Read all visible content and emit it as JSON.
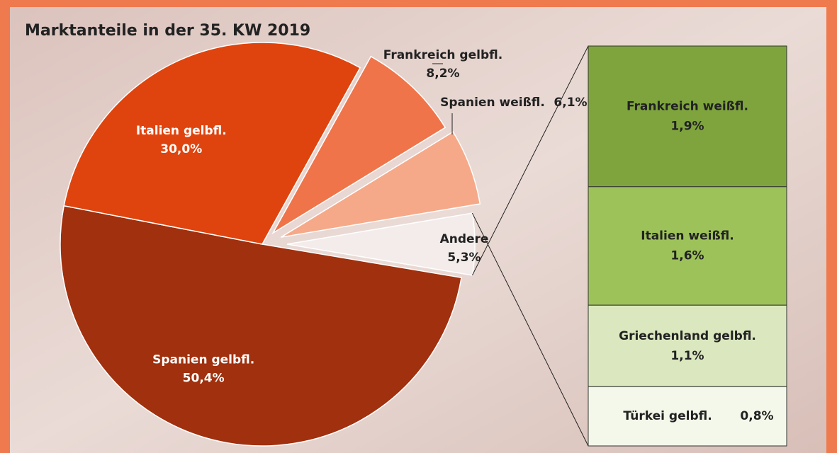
{
  "chart_data": {
    "type": "pie",
    "title": "Marktanteile in der 35. KW 2019",
    "categories": [
      "Andere",
      "Spanien gelbfl.",
      "Italien gelbfl.",
      "Frankreich gelbfl.",
      "Spanien weißfl."
    ],
    "values": [
      5.3,
      50.4,
      30.0,
      8.2,
      6.1
    ],
    "value_labels": [
      "5,3%",
      "50,4%",
      "30,0%",
      "8,2%",
      "6,1%"
    ],
    "colors": [
      "#f3ecea",
      "#a0300e",
      "#e0440e",
      "#f0744a",
      "#f6a988"
    ],
    "breakout": {
      "categories": [
        "Frankreich weißfl.",
        "Italien weißfl.",
        "Griechenland gelbfl.",
        "Türkei gelbfl."
      ],
      "values": [
        1.9,
        1.6,
        1.1,
        0.8
      ],
      "value_labels": [
        "1,9%",
        "1,6%",
        "1,1%",
        "0,8%"
      ],
      "colors": [
        "#7fa43e",
        "#9dc25a",
        "#dbe8bf",
        "#f4f8ea"
      ]
    }
  }
}
